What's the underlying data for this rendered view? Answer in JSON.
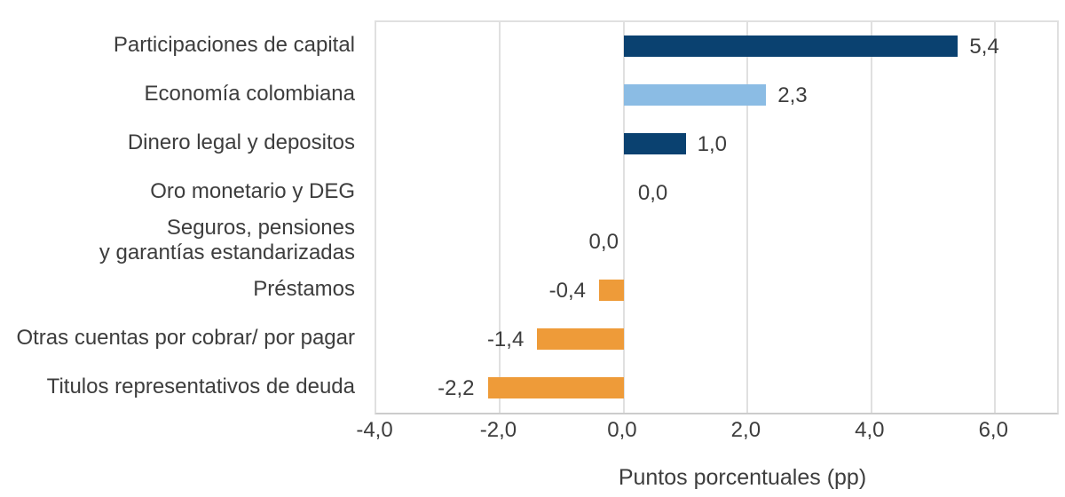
{
  "chart_data": {
    "type": "bar",
    "orientation": "horizontal",
    "title": "",
    "xlabel": "Puntos porcentuales (pp)",
    "ylabel": "",
    "xlim": [
      -4,
      7
    ],
    "grid": true,
    "x_tick_values": [
      -4,
      -2,
      0,
      2,
      4,
      6
    ],
    "x_ticks": [
      "-4,0",
      "-2,0",
      "0,0",
      "2,0",
      "4,0",
      "6,0"
    ],
    "categories": [
      "Participaciones de capital",
      "Economía colombiana",
      "Dinero legal y depositos",
      "Oro monetario y DEG",
      "Seguros, pensiones\ny garantías estandarizadas",
      "Préstamos",
      "Otras cuentas por cobrar/ por pagar",
      "Titulos representativos de deuda"
    ],
    "values": [
      5.4,
      2.3,
      1.0,
      0.0,
      0.0,
      -0.4,
      -1.4,
      -2.2
    ],
    "value_labels": [
      "5,4",
      "2,3",
      "1,0",
      "0,0",
      "0,0",
      "-0,4",
      "-1,4",
      "-2,2"
    ],
    "label_side": [
      "right",
      "right",
      "right",
      "right",
      "left",
      "left",
      "left",
      "left"
    ],
    "bar_colors": [
      "#0a4170",
      "#8bbce4",
      "#0a4170",
      "none",
      "none",
      "#ee9b39",
      "#ee9b39",
      "#ee9b39"
    ],
    "colors": {
      "dark_blue": "#0a4170",
      "light_blue": "#8bbce4",
      "orange": "#ee9b39",
      "gridline": "#e0e0e0",
      "axis_line": "#cccccc",
      "text": "#3d3d3d"
    }
  }
}
